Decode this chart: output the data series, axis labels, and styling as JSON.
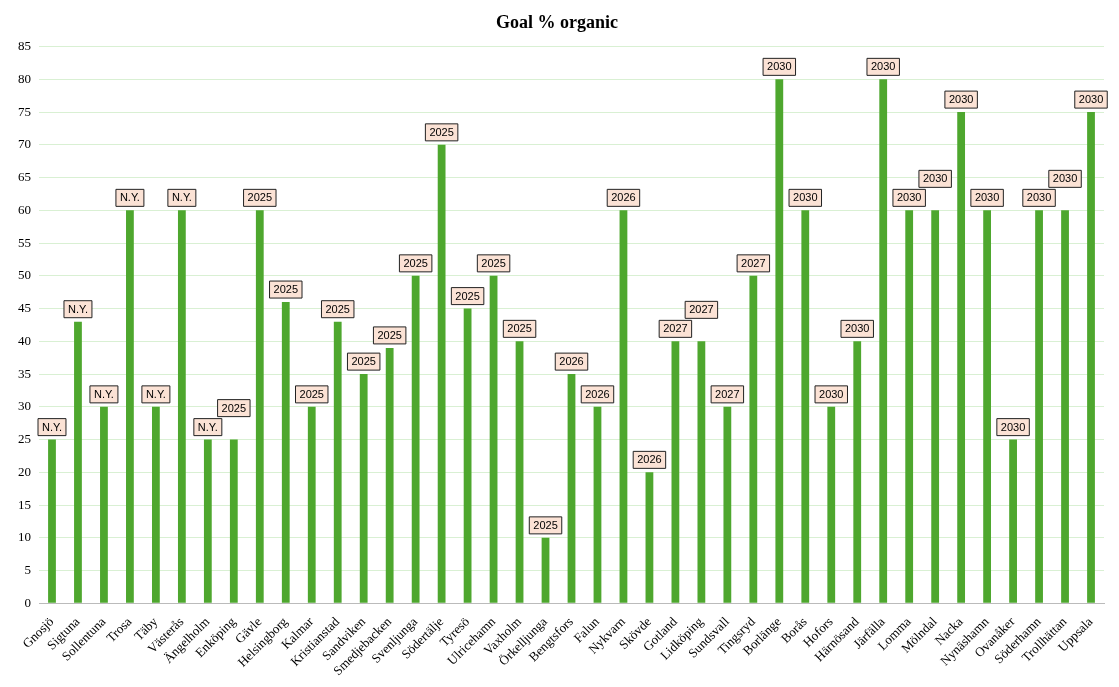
{
  "chart_data": {
    "type": "bar",
    "title": "Goal % organic",
    "categories": [
      "Gnosjö",
      "Sigtuna",
      "Sollentuna",
      "Trosa",
      "Täby",
      "Västerås",
      "Ängelholm",
      "Enköping",
      "Gävle",
      "Helsingborg",
      "Kalmar",
      "Kristianstad",
      "Sandviken",
      "Smedjebacken",
      "Svenljunga",
      "Södertälje",
      "Tyresö",
      "Ulricehamn",
      "Vaxholm",
      "Örkelljunga",
      "Bengtsfors",
      "Falun",
      "Nykvarn",
      "Skövde",
      "Gotland",
      "Lidköping",
      "Sundsvall",
      "Tingsryd",
      "Borlänge",
      "Borås",
      "Hofors",
      "Härnösand",
      "Järfälla",
      "Lomma",
      "Mölndal",
      "Nacka",
      "Nynäshamn",
      "Ovanåker",
      "Söderhamn",
      "Trollhättan",
      "Uppsala"
    ],
    "values": [
      25,
      43,
      30,
      60,
      30,
      60,
      25,
      25,
      60,
      46,
      30,
      43,
      35,
      39,
      50,
      70,
      45,
      50,
      40,
      10,
      35,
      30,
      60,
      20,
      40,
      40,
      30,
      50,
      80,
      60,
      30,
      40,
      80,
      60,
      60,
      75,
      60,
      25,
      60,
      60,
      75
    ],
    "annotations": [
      {
        "text": "N.Y.",
        "x": "Gnosjö",
        "y": 25
      },
      {
        "text": "N.Y.",
        "x": "Sigtuna",
        "y": 43
      },
      {
        "text": "N.Y.",
        "x": "Sollentuna",
        "y": 30
      },
      {
        "text": "N.Y.",
        "x": "Trosa",
        "y": 60
      },
      {
        "text": "N.Y.",
        "x": "Täby",
        "y": 30
      },
      {
        "text": "N.Y.",
        "x": "Västerås",
        "y": 60
      },
      {
        "text": "N.Y.",
        "x": "Ängelholm",
        "y": 25
      },
      {
        "text": "2025",
        "x": "Enköping",
        "y": 25
      },
      {
        "text": "2025",
        "x": "Gävle",
        "y": 60
      },
      {
        "text": "2025",
        "x": "Helsingborg",
        "y": 46
      },
      {
        "text": "2025",
        "x": "Kalmar",
        "y": 30
      },
      {
        "text": "2025",
        "x": "Kristianstad",
        "y": 43
      },
      {
        "text": "2025",
        "x": "Sandviken",
        "y": 35
      },
      {
        "text": "2025",
        "x": "Smedjebacken",
        "y": 39
      },
      {
        "text": "2025",
        "x": "Svenljunga",
        "y": 50
      },
      {
        "text": "2025",
        "x": "Södertälje",
        "y": 70
      },
      {
        "text": "2025",
        "x": "Tyresö",
        "y": 45
      },
      {
        "text": "2025",
        "x": "Ulricehamn",
        "y": 50
      },
      {
        "text": "2025",
        "x": "Vaxholm",
        "y": 40
      },
      {
        "text": "2025",
        "x": "Örkelljunga",
        "y": 10
      },
      {
        "text": "2026",
        "x": "Bengtsfors",
        "y": 35
      },
      {
        "text": "2026",
        "x": "Falun",
        "y": 30
      },
      {
        "text": "2026",
        "x": "Nykvarn",
        "y": 60
      },
      {
        "text": "2026",
        "x": "Skövde",
        "y": 20
      },
      {
        "text": "2027",
        "x": "Gotland",
        "y": 40
      },
      {
        "text": "2027",
        "x": "Lidköping",
        "y": 40
      },
      {
        "text": "2027",
        "x": "Sundsvall",
        "y": 30
      },
      {
        "text": "2027",
        "x": "Tingsryd",
        "y": 50
      },
      {
        "text": "2030",
        "x": "Borlänge",
        "y": 80
      },
      {
        "text": "2030",
        "x": "Borås",
        "y": 60
      },
      {
        "text": "2030",
        "x": "Hofors",
        "y": 30
      },
      {
        "text": "2030",
        "x": "Härnösand",
        "y": 40
      },
      {
        "text": "2030",
        "x": "Järfälla",
        "y": 80
      },
      {
        "text": "2030",
        "x": "Lomma",
        "y": 60
      },
      {
        "text": "2030",
        "x": "Mölndal",
        "y": 60
      },
      {
        "text": "2030",
        "x": "Nacka",
        "y": 75
      },
      {
        "text": "2030",
        "x": "Nynäshamn",
        "y": 60
      },
      {
        "text": "2030",
        "x": "Ovanåker",
        "y": 25
      },
      {
        "text": "2030",
        "x": "Söderhamn",
        "y": 60
      },
      {
        "text": "2030",
        "x": "Trollhättan",
        "y": 60
      },
      {
        "text": "2030",
        "x": "Uppsala",
        "y": 75
      }
    ],
    "color": "#4ea72e",
    "ylim": [
      0,
      85
    ],
    "yticks": [
      0,
      5,
      10,
      15,
      20,
      25,
      30,
      35,
      40,
      45,
      50,
      55,
      60,
      65,
      70,
      75,
      80,
      85
    ],
    "grid": "y"
  }
}
